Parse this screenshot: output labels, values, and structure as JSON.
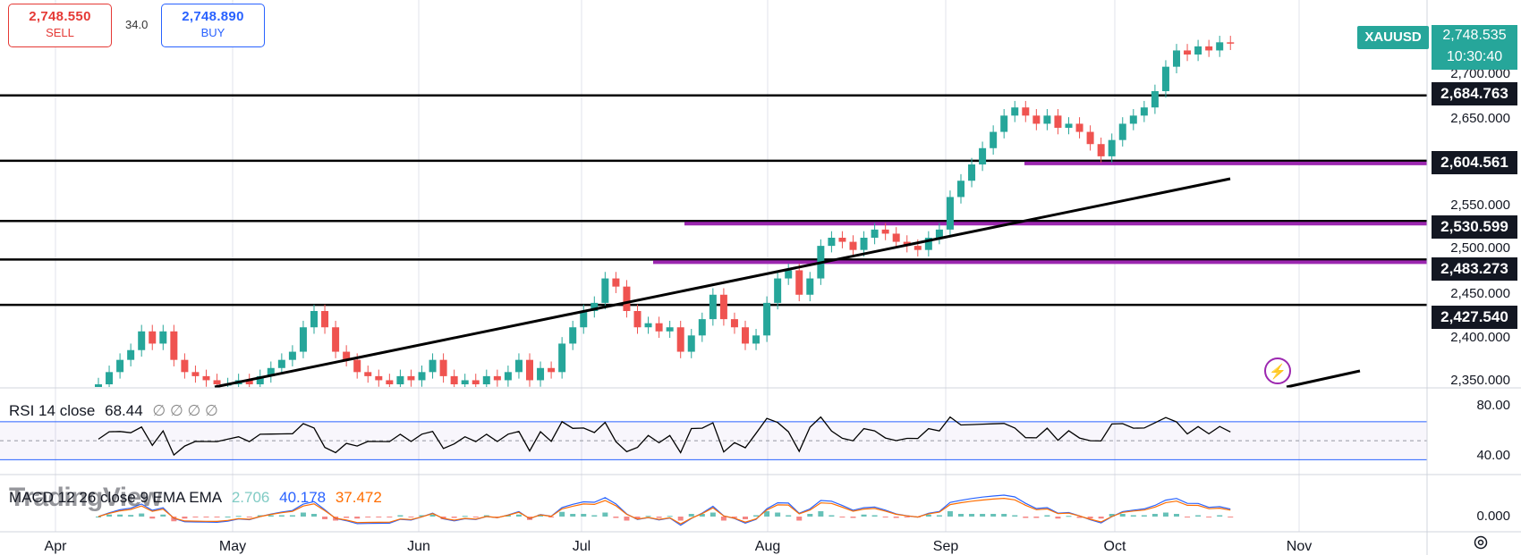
{
  "trade": {
    "sell_price": "2,748.550",
    "sell_label": "SELL",
    "spread": "34.0",
    "buy_price": "2,748.890",
    "buy_label": "BUY"
  },
  "symbol": "XAUUSD",
  "last_price": "2,748.535",
  "countdown": "10:30:40",
  "levels": [
    "2,684.763",
    "2,604.561",
    "2,530.599",
    "2,483.273",
    "2,427.540"
  ],
  "price_axis": [
    "2,700.000",
    "2,650.000",
    "2,550.000",
    "2,500.000",
    "2,450.000",
    "2,400.000",
    "2,350.000"
  ],
  "rsi": {
    "name": "RSI 14 close",
    "value": "68.44",
    "extra": "∅ ∅ ∅ ∅",
    "axis": [
      "80.00",
      "40.00"
    ]
  },
  "macd": {
    "name": "MACD 12 26 close 9 EMA EMA",
    "hist": "2.706",
    "macd": "40.178",
    "signal": "37.472",
    "axis": "0.000"
  },
  "months": [
    "Apr",
    "May",
    "Jun",
    "Jul",
    "Aug",
    "Sep",
    "Oct",
    "Nov"
  ],
  "logo_text": "TradingView",
  "colors": {
    "up": "#26a69a",
    "down": "#ef5350",
    "level": "#000000",
    "zone": "#9c27b0",
    "rsi_band": "#2962ff",
    "macd_line": "#2962ff",
    "signal_line": "#ff6d00"
  },
  "chart_data": {
    "type": "candlestick",
    "symbol": "XAUUSD",
    "y_range": [
      2330,
      2780
    ],
    "horizontal_levels": [
      2684.763,
      2604.561,
      2530.599,
      2483.273,
      2427.54
    ],
    "zones": [
      2604.561,
      2530.599,
      2483.273
    ],
    "closes": [
      2330,
      2345,
      2360,
      2372,
      2395,
      2380,
      2395,
      2360,
      2345,
      2340,
      2335,
      2330,
      2330,
      2335,
      2330,
      2340,
      2350,
      2360,
      2370,
      2400,
      2420,
      2400,
      2370,
      2360,
      2345,
      2340,
      2335,
      2330,
      2340,
      2335,
      2345,
      2360,
      2340,
      2330,
      2335,
      2330,
      2340,
      2335,
      2345,
      2360,
      2335,
      2350,
      2345,
      2380,
      2400,
      2420,
      2430,
      2460,
      2450,
      2420,
      2400,
      2405,
      2395,
      2400,
      2370,
      2390,
      2410,
      2440,
      2410,
      2400,
      2380,
      2390,
      2430,
      2460,
      2470,
      2440,
      2460,
      2500,
      2510,
      2505,
      2495,
      2510,
      2520,
      2515,
      2505,
      2500,
      2495,
      2510,
      2520,
      2560,
      2580,
      2600,
      2620,
      2640,
      2660,
      2670,
      2660,
      2650,
      2660,
      2645,
      2650,
      2640,
      2625,
      2610,
      2630,
      2650,
      2660,
      2670,
      2690,
      2720,
      2740,
      2735,
      2745,
      2740,
      2750,
      2748.5
    ],
    "rsi_values": [
      68.44
    ],
    "macd_values": {
      "histogram": 2.706,
      "macd": 40.178,
      "signal": 37.472
    }
  }
}
